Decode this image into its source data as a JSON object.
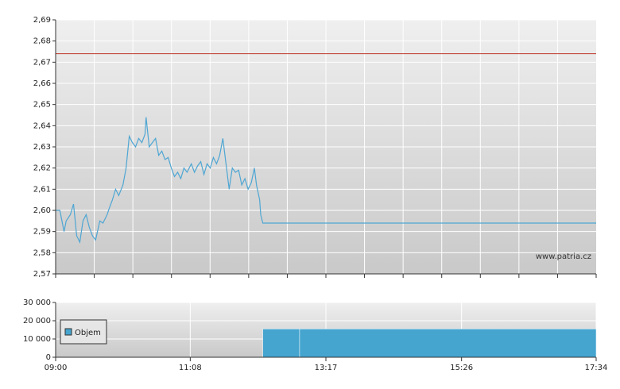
{
  "chart_data": [
    {
      "type": "line",
      "ylim": [
        2.57,
        2.69
      ],
      "yticks": [
        {
          "value": 2.57,
          "label": "2,57"
        },
        {
          "value": 2.58,
          "label": "2,58"
        },
        {
          "value": 2.59,
          "label": "2,59"
        },
        {
          "value": 2.6,
          "label": "2,60"
        },
        {
          "value": 2.61,
          "label": "2,61"
        },
        {
          "value": 2.62,
          "label": "2,62"
        },
        {
          "value": 2.63,
          "label": "2,63"
        },
        {
          "value": 2.64,
          "label": "2,64"
        },
        {
          "value": 2.65,
          "label": "2,65"
        },
        {
          "value": 2.66,
          "label": "2,66"
        },
        {
          "value": 2.67,
          "label": "2,67"
        },
        {
          "value": 2.68,
          "label": "2,68"
        },
        {
          "value": 2.69,
          "label": "2,69"
        }
      ],
      "xlim": [
        "09:00",
        "17:34"
      ],
      "grid": true,
      "color": "#4ea6d3",
      "x": [
        "09:00",
        "09:04",
        "09:08",
        "09:10",
        "09:14",
        "09:17",
        "09:20",
        "09:23",
        "09:26",
        "09:29",
        "09:32",
        "09:35",
        "09:38",
        "09:42",
        "09:45",
        "09:49",
        "09:51",
        "09:54",
        "09:57",
        "10:00",
        "10:04",
        "10:07",
        "10:10",
        "10:13",
        "10:16",
        "10:19",
        "10:22",
        "10:25",
        "10:26",
        "10:29",
        "10:32",
        "10:35",
        "10:38",
        "10:41",
        "10:44",
        "10:47",
        "10:50",
        "10:53",
        "10:56",
        "10:59",
        "11:02",
        "11:05",
        "11:09",
        "11:12",
        "11:15",
        "11:18",
        "11:21",
        "11:24",
        "11:27",
        "11:30",
        "11:33",
        "11:36",
        "11:39",
        "11:42",
        "11:45",
        "11:48",
        "11:51",
        "11:54",
        "11:57",
        "12:00",
        "12:03",
        "12:06",
        "12:09",
        "12:11",
        "12:14",
        "12:15",
        "12:17",
        "17:34"
      ],
      "values": [
        2.6,
        2.6,
        2.59,
        2.595,
        2.598,
        2.603,
        2.588,
        2.585,
        2.595,
        2.598,
        2.592,
        2.588,
        2.586,
        2.595,
        2.594,
        2.598,
        2.601,
        2.605,
        2.61,
        2.607,
        2.612,
        2.62,
        2.635,
        2.632,
        2.63,
        2.634,
        2.632,
        2.636,
        2.644,
        2.63,
        2.632,
        2.634,
        2.626,
        2.628,
        2.624,
        2.625,
        2.62,
        2.616,
        2.618,
        2.615,
        2.62,
        2.618,
        2.622,
        2.618,
        2.621,
        2.623,
        2.617,
        2.622,
        2.62,
        2.625,
        2.622,
        2.626,
        2.634,
        2.622,
        2.61,
        2.62,
        2.618,
        2.619,
        2.612,
        2.615,
        2.61,
        2.613,
        2.62,
        2.612,
        2.605,
        2.598,
        2.594,
        2.594
      ],
      "reference_line": {
        "value": 2.674,
        "color": "#c0392b"
      },
      "watermark": "www.patria.cz"
    },
    {
      "type": "bar",
      "ylim": [
        0,
        30000
      ],
      "yticks": [
        {
          "value": 0,
          "label": "0"
        },
        {
          "value": 10000,
          "label": "10 000"
        },
        {
          "value": 20000,
          "label": "20 000"
        },
        {
          "value": 30000,
          "label": "30 000"
        }
      ],
      "xlim": [
        "09:00",
        "17:34"
      ],
      "xticks": [
        "09:00",
        "11:08",
        "13:17",
        "15:26",
        "17:34"
      ],
      "grid": true,
      "legend": "top-left",
      "series": [
        {
          "name": "Objem",
          "color": "#45a5cf",
          "x_start": [
            "12:17",
            "12:52"
          ],
          "x_end": [
            "12:52",
            "17:34"
          ],
          "values": [
            15500,
            15500
          ]
        }
      ]
    }
  ]
}
